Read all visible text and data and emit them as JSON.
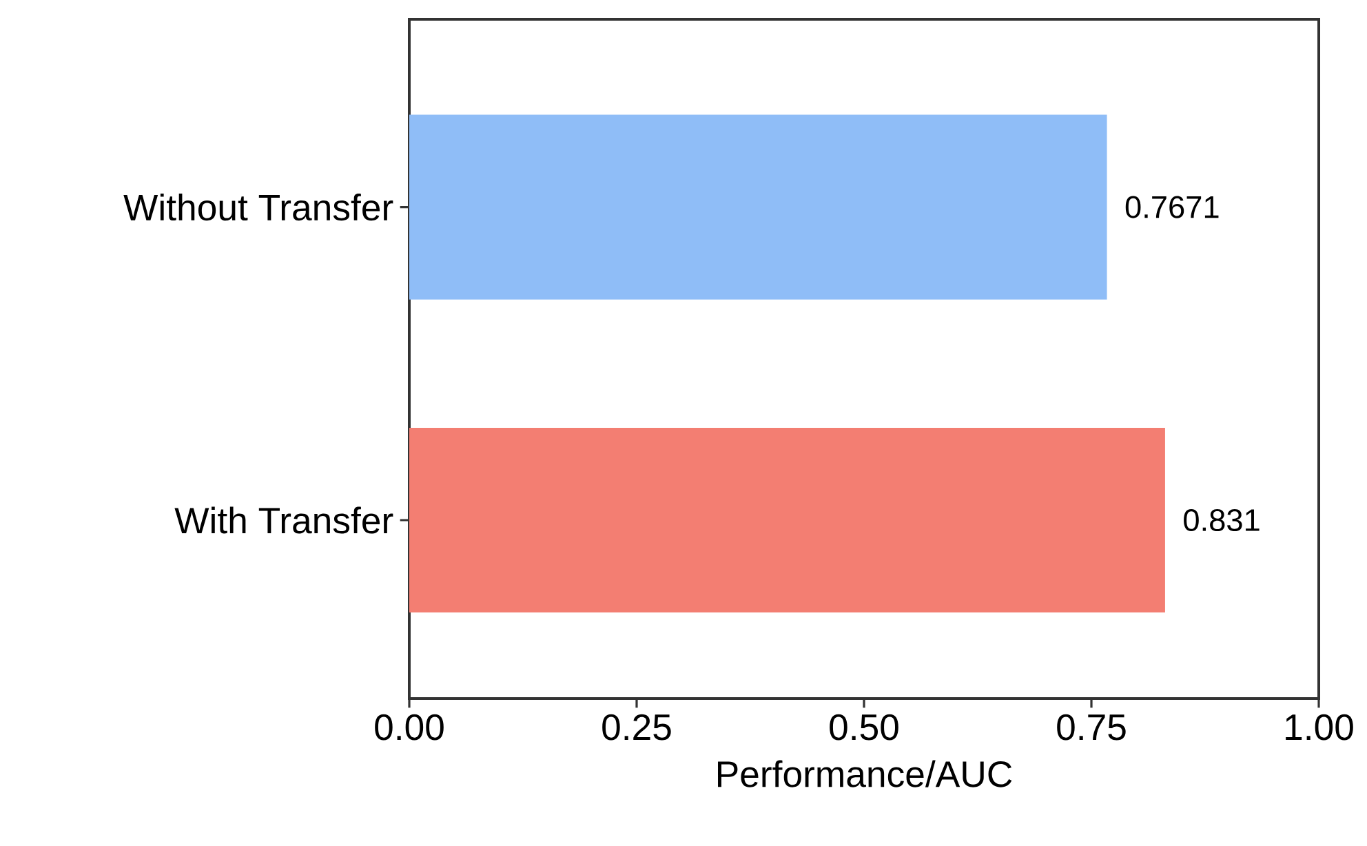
{
  "chart_data": {
    "type": "bar",
    "orientation": "horizontal",
    "categories": [
      "Without Transfer",
      "With Transfer"
    ],
    "values": [
      0.7671,
      0.831
    ],
    "colors": [
      "#8fbdf7",
      "#f37e72"
    ],
    "data_labels": true,
    "xlabel": "Performance/AUC",
    "xlim": [
      0,
      1
    ],
    "xticks": [
      {
        "value": 0,
        "label": "0.00"
      },
      {
        "value": 0.25,
        "label": "0.25"
      },
      {
        "value": 0.5,
        "label": "0.50"
      },
      {
        "value": 0.75,
        "label": "0.75"
      },
      {
        "value": 1,
        "label": "1.00"
      }
    ]
  }
}
